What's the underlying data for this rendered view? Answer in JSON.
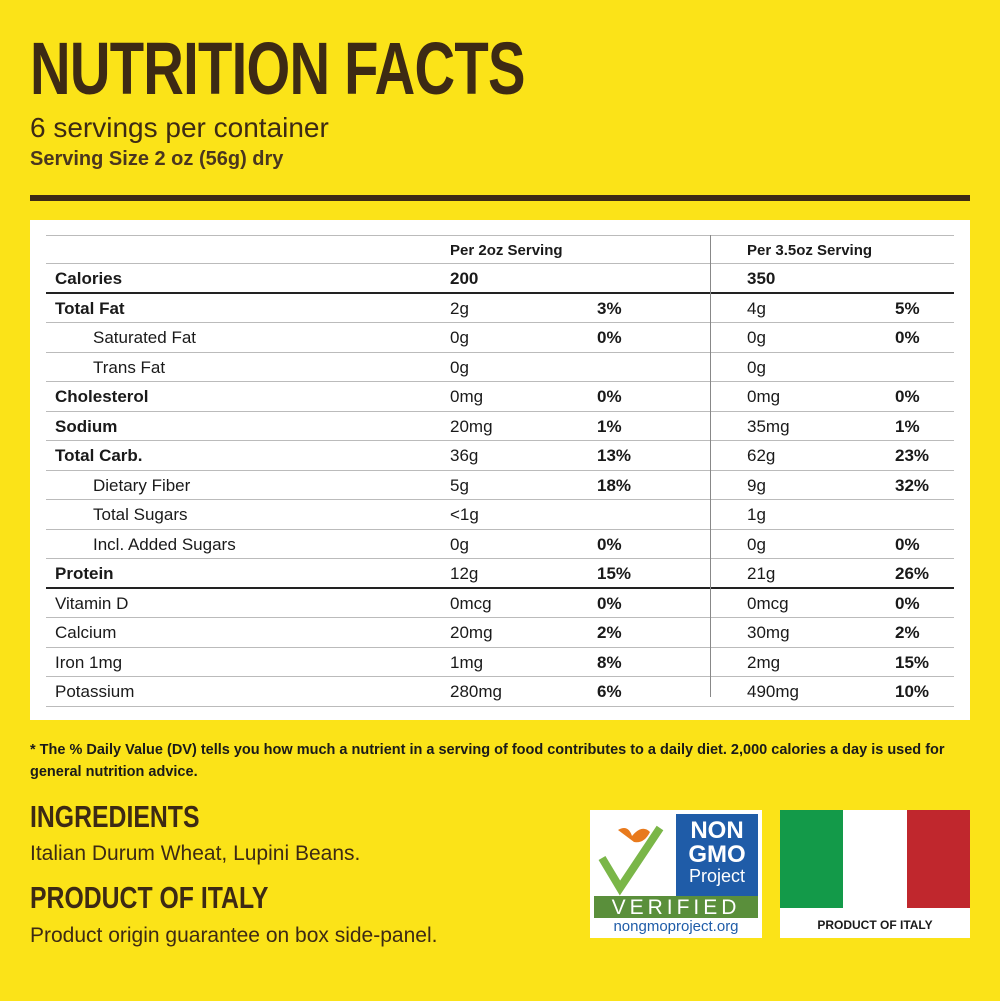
{
  "header": {
    "title": "NUTRITION FACTS",
    "servings": "6 servings per container",
    "serving_size": "Serving Size 2 oz (56g) dry"
  },
  "table": {
    "columns": [
      "Per 2oz Serving",
      "Per 3.5oz Serving"
    ],
    "rows": [
      {
        "nutrient": "Calories",
        "a": "200",
        "b": "350"
      },
      {
        "nutrient": "Total Fat",
        "a": "2g",
        "a_dv": "3%",
        "b": "4g",
        "b_dv": "5%"
      },
      {
        "nutrient": "Saturated Fat",
        "a": "0g",
        "a_dv": "0%",
        "b": "0g",
        "b_dv": "0%"
      },
      {
        "nutrient": "Trans Fat",
        "a": "0g",
        "b": "0g"
      },
      {
        "nutrient": "Cholesterol",
        "a": "0mg",
        "a_dv": "0%",
        "b": "0mg",
        "b_dv": "0%"
      },
      {
        "nutrient": "Sodium",
        "a": "20mg",
        "a_dv": "1%",
        "b": "35mg",
        "b_dv": "1%"
      },
      {
        "nutrient": "Total Carb.",
        "a": "36g",
        "a_dv": "13%",
        "b": "62g",
        "b_dv": "23%"
      },
      {
        "nutrient": "Dietary Fiber",
        "a": "5g",
        "a_dv": "18%",
        "b": "9g",
        "b_dv": "32%"
      },
      {
        "nutrient": "Total Sugars",
        "a": "<1g",
        "b": "1g"
      },
      {
        "nutrient": "Incl. Added Sugars",
        "a": "0g",
        "a_dv": "0%",
        "b": "0g",
        "b_dv": "0%"
      },
      {
        "nutrient": "Protein",
        "a": "12g",
        "a_dv": "15%",
        "b": "21g",
        "b_dv": "26%"
      },
      {
        "nutrient": "Vitamin D",
        "a": "0mcg",
        "a_dv": "0%",
        "b": "0mcg",
        "b_dv": "0%"
      },
      {
        "nutrient": "Calcium",
        "a": "20mg",
        "a_dv": "2%",
        "b": "30mg",
        "b_dv": "2%"
      },
      {
        "nutrient": "Iron 1mg",
        "a": "1mg",
        "a_dv": "8%",
        "b": "2mg",
        "b_dv": "15%"
      },
      {
        "nutrient": "Potassium",
        "a": "280mg",
        "a_dv": "6%",
        "b": "490mg",
        "b_dv": "10%"
      }
    ]
  },
  "footnote": "* The % Daily Value (DV) tells you how much a nutrient in a serving of food contributes to a daily diet. 2,000 calories a day is used for general nutrition advice.",
  "ingredients": {
    "title": "INGREDIENTS",
    "text": "Italian Durum Wheat, Lupini Beans."
  },
  "origin": {
    "title": "PRODUCT OF ITALY",
    "text": "Product origin guarantee on box side-panel."
  },
  "badge": {
    "line1": "NON",
    "line2": "GMO",
    "line3": "Project",
    "verified": "VERIFIED",
    "url": "nongmoproject.org"
  },
  "flag": {
    "caption": "PRODUCT OF ITALY"
  }
}
